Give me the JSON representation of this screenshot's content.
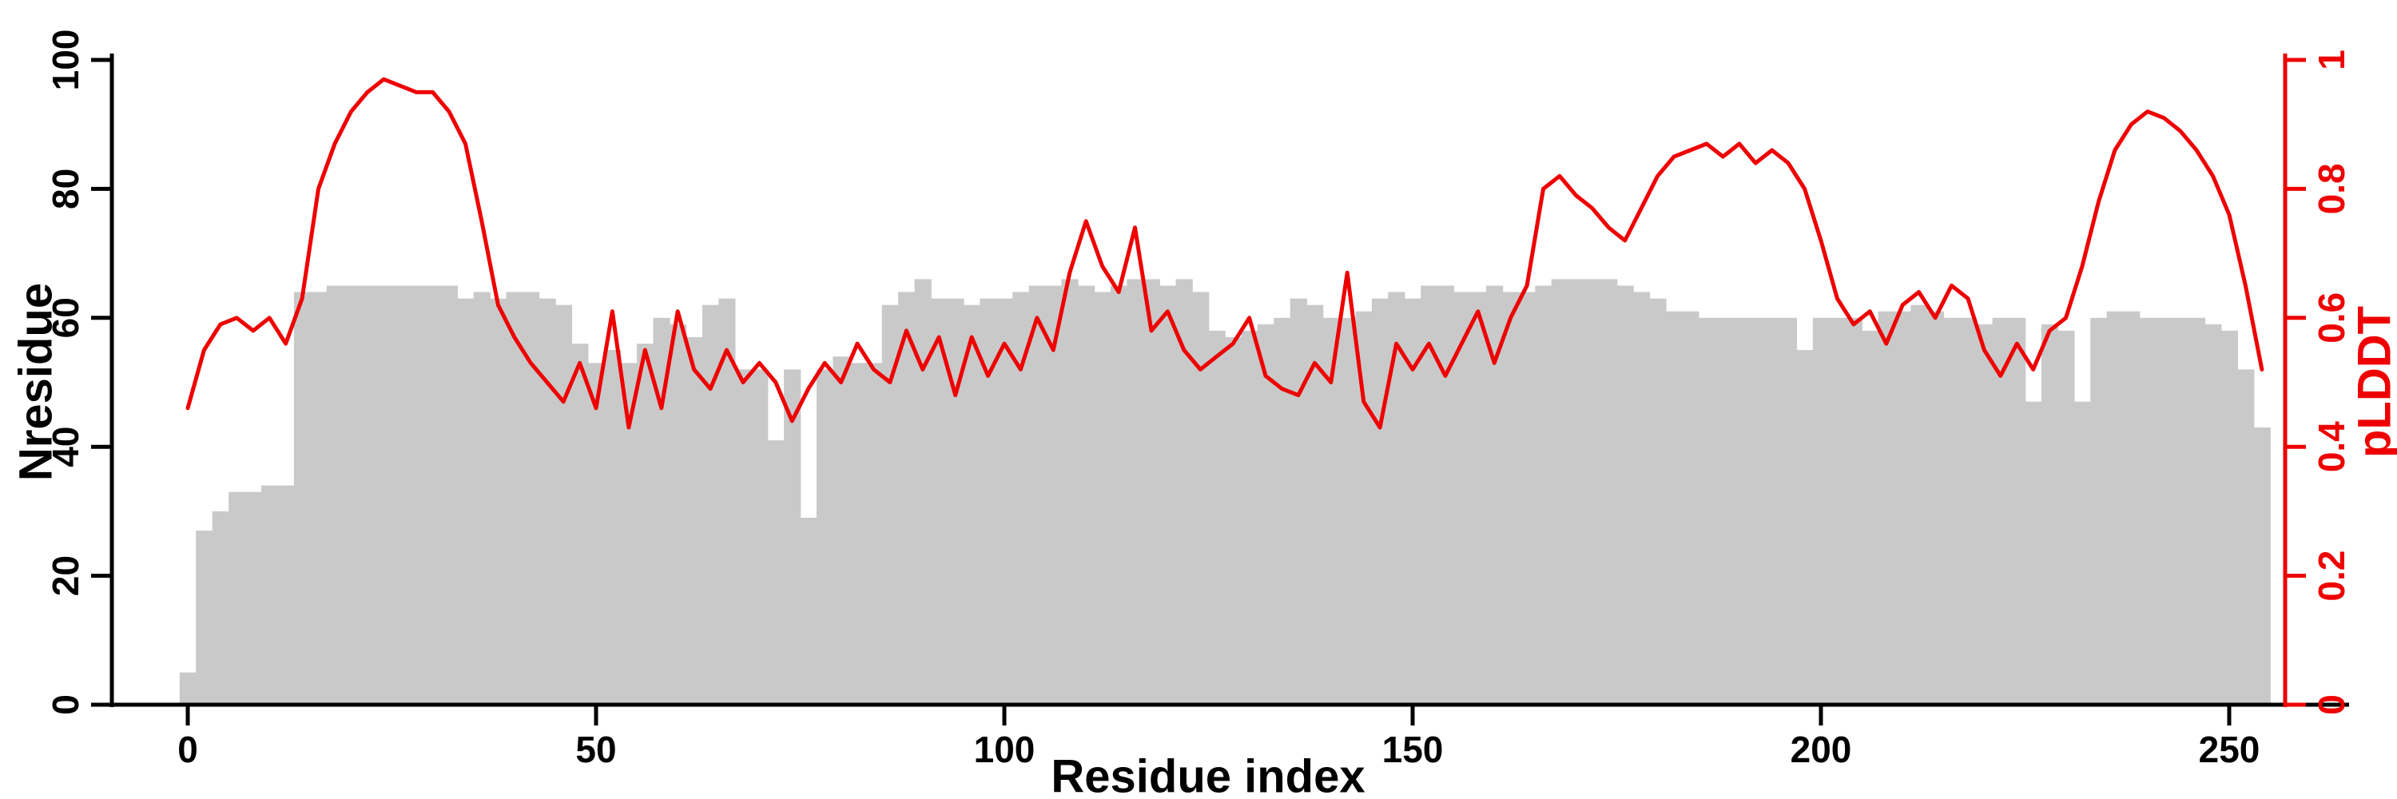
{
  "page": {
    "background": "#ffffff"
  },
  "colors": {
    "bar": "#c9c9c9",
    "line": "#ee0000",
    "axis": "#000000"
  },
  "chart_data": {
    "type": "bar+line",
    "title": "",
    "xlabel": "Residue index",
    "ylabel_left": "Nresidue",
    "ylabel_right": "pLDDT",
    "xlim": [
      0,
      270
    ],
    "ylim_left": [
      0,
      100
    ],
    "ylim_right": [
      0,
      1
    ],
    "x_ticks": [
      0,
      50,
      100,
      150,
      200,
      250
    ],
    "y_ticks_left": [
      0,
      20,
      40,
      60,
      80,
      100
    ],
    "y_ticks_right": [
      0,
      0.2,
      0.4,
      0.6,
      0.8,
      1
    ],
    "y_ticks_right_labels": [
      "0",
      "0.2",
      "0.4",
      "0.6",
      "0.8",
      "1"
    ],
    "grid": false,
    "legend": "none",
    "x_start": 0,
    "x_step": 2,
    "series": [
      {
        "name": "Nresidue",
        "type": "bar",
        "axis": "left",
        "color": "#c9c9c9",
        "values": [
          5,
          27,
          30,
          33,
          33,
          34,
          34,
          64,
          64,
          65,
          65,
          65,
          65,
          65,
          65,
          65,
          65,
          63,
          64,
          63,
          64,
          64,
          63,
          62,
          56,
          53,
          55,
          53,
          56,
          60,
          59,
          57,
          62,
          63,
          52,
          52,
          41,
          52,
          29,
          52,
          54,
          53,
          53,
          62,
          64,
          66,
          63,
          63,
          62,
          63,
          63,
          64,
          65,
          65,
          66,
          65,
          64,
          65,
          66,
          66,
          65,
          66,
          64,
          58,
          57,
          58,
          59,
          60,
          63,
          62,
          60,
          60,
          61,
          63,
          64,
          63,
          65,
          65,
          64,
          64,
          65,
          64,
          64,
          65,
          66,
          66,
          66,
          66,
          65,
          64,
          63,
          61,
          61,
          60,
          60,
          60,
          60,
          60,
          60,
          55,
          60,
          60,
          60,
          58,
          61,
          61,
          62,
          61,
          60,
          60,
          59,
          60,
          60,
          47,
          59,
          58,
          47,
          60,
          61,
          61,
          60,
          60,
          60,
          60,
          59,
          58,
          52,
          43
        ]
      },
      {
        "name": "pLDDT",
        "type": "line",
        "axis": "right",
        "color": "#ee0000",
        "values": [
          0.46,
          0.55,
          0.59,
          0.6,
          0.58,
          0.6,
          0.56,
          0.63,
          0.8,
          0.87,
          0.92,
          0.95,
          0.97,
          0.96,
          0.95,
          0.95,
          0.92,
          0.87,
          0.75,
          0.62,
          0.57,
          0.53,
          0.5,
          0.47,
          0.53,
          0.46,
          0.61,
          0.43,
          0.55,
          0.46,
          0.61,
          0.52,
          0.49,
          0.55,
          0.5,
          0.53,
          0.5,
          0.44,
          0.49,
          0.53,
          0.5,
          0.56,
          0.52,
          0.5,
          0.58,
          0.52,
          0.57,
          0.48,
          0.57,
          0.51,
          0.56,
          0.52,
          0.6,
          0.55,
          0.67,
          0.75,
          0.68,
          0.64,
          0.74,
          0.58,
          0.61,
          0.55,
          0.52,
          0.54,
          0.56,
          0.6,
          0.51,
          0.49,
          0.48,
          0.53,
          0.5,
          0.67,
          0.47,
          0.43,
          0.56,
          0.52,
          0.56,
          0.51,
          0.56,
          0.61,
          0.53,
          0.6,
          0.65,
          0.8,
          0.82,
          0.79,
          0.77,
          0.74,
          0.72,
          0.77,
          0.82,
          0.85,
          0.86,
          0.87,
          0.85,
          0.87,
          0.84,
          0.86,
          0.84,
          0.8,
          0.72,
          0.63,
          0.59,
          0.61,
          0.56,
          0.62,
          0.64,
          0.6,
          0.65,
          0.63,
          0.55,
          0.51,
          0.56,
          0.52,
          0.58,
          0.6,
          0.68,
          0.78,
          0.86,
          0.9,
          0.92,
          0.91,
          0.89,
          0.86,
          0.82,
          0.76,
          0.65,
          0.52
        ]
      }
    ]
  }
}
